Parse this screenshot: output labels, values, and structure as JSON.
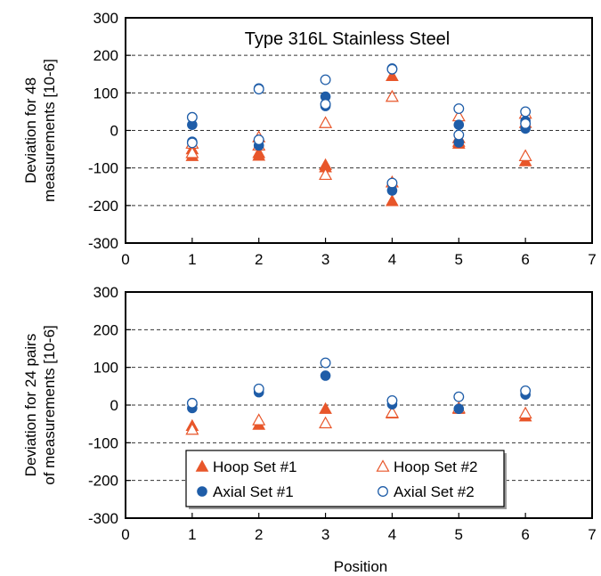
{
  "colors": {
    "hoop": "#E8562A",
    "axial": "#1F5DA8",
    "grid": "#333333"
  },
  "xlabel": "Position",
  "legend": {
    "placement": "bottom-center of lower panel",
    "items": [
      {
        "label": "Hoop Set #1",
        "marker": "triangle",
        "fill": "filled",
        "color": "#E8562A"
      },
      {
        "label": "Hoop Set #2",
        "marker": "triangle",
        "fill": "hollow",
        "color": "#E8562A"
      },
      {
        "label": "Axial Set #1",
        "marker": "circle",
        "fill": "filled",
        "color": "#1F5DA8"
      },
      {
        "label": "Axial Set #2",
        "marker": "circle",
        "fill": "hollow",
        "color": "#1F5DA8"
      }
    ]
  },
  "chart_data": [
    {
      "type": "scatter",
      "title": "Type 316L Stainless Steel",
      "ylabel": [
        "Deviation for 48",
        "measurements [10-6]"
      ],
      "xlim": [
        0,
        7
      ],
      "ylim": [
        -300,
        300
      ],
      "xticks": [
        0,
        1,
        2,
        3,
        4,
        5,
        6,
        7
      ],
      "yticks": [
        -300,
        -200,
        -100,
        0,
        100,
        200,
        300
      ],
      "grid": "horizontal dashed",
      "series": [
        {
          "name": "Hoop Set #1",
          "marker": "triangle",
          "filled": true,
          "points": [
            [
              1,
              -50
            ],
            [
              1,
              -68
            ],
            [
              2,
              -60
            ],
            [
              2,
              -67
            ],
            [
              3,
              -92
            ],
            [
              3,
              -98
            ],
            [
              4,
              145
            ],
            [
              4,
              -188
            ],
            [
              5,
              -30
            ],
            [
              5,
              -35
            ],
            [
              6,
              20
            ],
            [
              6,
              -82
            ]
          ]
        },
        {
          "name": "Hoop Set #2",
          "marker": "triangle",
          "filled": false,
          "points": [
            [
              1,
              -35
            ],
            [
              1,
              -60
            ],
            [
              2,
              -18
            ],
            [
              2,
              -40
            ],
            [
              3,
              20
            ],
            [
              3,
              -118
            ],
            [
              4,
              90
            ],
            [
              4,
              -138
            ],
            [
              5,
              38
            ],
            [
              5,
              -20
            ],
            [
              6,
              45
            ],
            [
              6,
              -68
            ]
          ]
        },
        {
          "name": "Axial Set #1",
          "marker": "circle",
          "filled": true,
          "points": [
            [
              1,
              15
            ],
            [
              1,
              -30
            ],
            [
              2,
              112
            ],
            [
              2,
              -40
            ],
            [
              3,
              90
            ],
            [
              3,
              65
            ],
            [
              4,
              165
            ],
            [
              4,
              -160
            ],
            [
              5,
              15
            ],
            [
              5,
              -32
            ],
            [
              6,
              25
            ],
            [
              6,
              5
            ]
          ]
        },
        {
          "name": "Axial Set #2",
          "marker": "circle",
          "filled": false,
          "points": [
            [
              1,
              35
            ],
            [
              1,
              -33
            ],
            [
              2,
              110
            ],
            [
              2,
              -25
            ],
            [
              3,
              135
            ],
            [
              3,
              70
            ],
            [
              4,
              163
            ],
            [
              4,
              -140
            ],
            [
              5,
              58
            ],
            [
              5,
              -12
            ],
            [
              6,
              50
            ],
            [
              6,
              18
            ]
          ]
        }
      ]
    },
    {
      "type": "scatter",
      "title": "",
      "ylabel": [
        "Deviation for 24 pairs",
        "of measurements [10-6]"
      ],
      "xlabel": "Position",
      "xlim": [
        0,
        7
      ],
      "ylim": [
        -300,
        300
      ],
      "xticks": [
        0,
        1,
        2,
        3,
        4,
        5,
        6,
        7
      ],
      "yticks": [
        -300,
        -200,
        -100,
        0,
        100,
        200,
        300
      ],
      "grid": "horizontal dashed",
      "series": [
        {
          "name": "Hoop Set #1",
          "marker": "triangle",
          "filled": true,
          "points": [
            [
              1,
              -55
            ],
            [
              2,
              -52
            ],
            [
              3,
              -10
            ],
            [
              4,
              -22
            ],
            [
              5,
              -10
            ],
            [
              6,
              -30
            ]
          ]
        },
        {
          "name": "Hoop Set #2",
          "marker": "triangle",
          "filled": false,
          "points": [
            [
              1,
              -65
            ],
            [
              2,
              -40
            ],
            [
              3,
              -48
            ],
            [
              4,
              -20
            ],
            [
              5,
              -8
            ],
            [
              6,
              -22
            ]
          ]
        },
        {
          "name": "Axial Set #1",
          "marker": "circle",
          "filled": true,
          "points": [
            [
              1,
              -8
            ],
            [
              2,
              34
            ],
            [
              3,
              78
            ],
            [
              4,
              2
            ],
            [
              5,
              -10
            ],
            [
              6,
              28
            ]
          ]
        },
        {
          "name": "Axial Set #2",
          "marker": "circle",
          "filled": false,
          "points": [
            [
              1,
              5
            ],
            [
              2,
              43
            ],
            [
              3,
              112
            ],
            [
              4,
              12
            ],
            [
              5,
              22
            ],
            [
              6,
              38
            ]
          ]
        }
      ]
    }
  ]
}
